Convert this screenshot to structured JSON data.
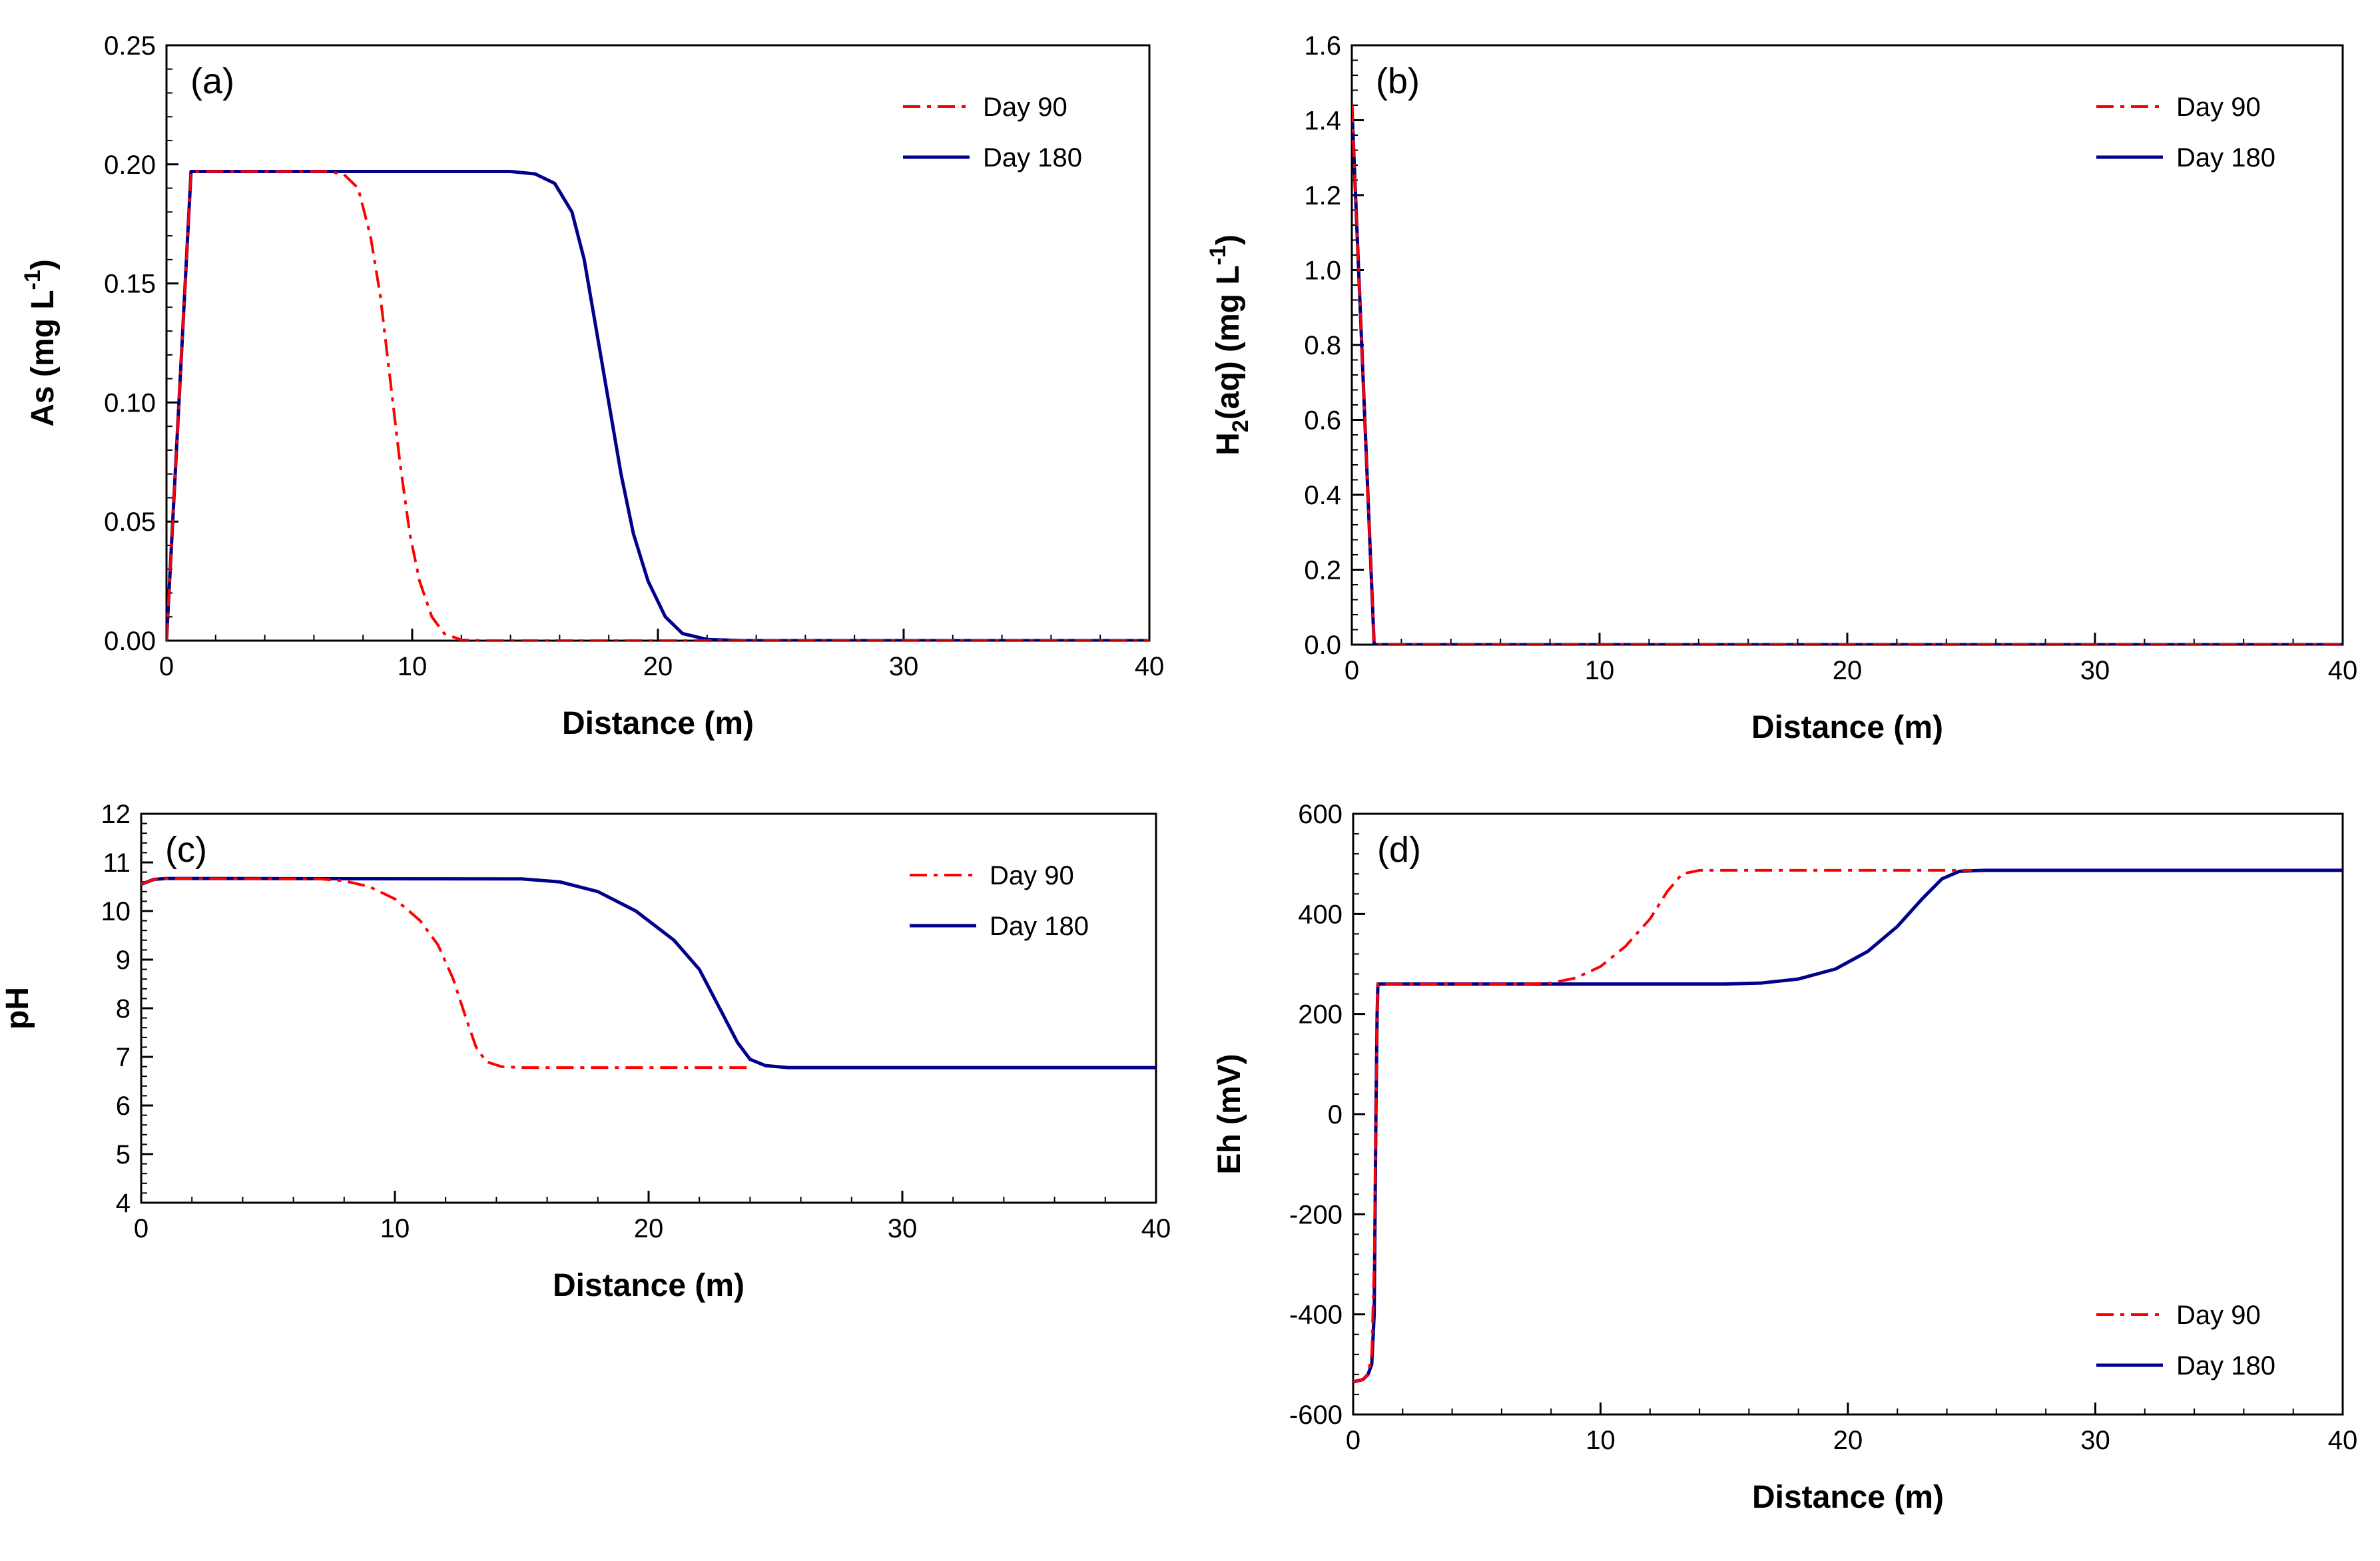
{
  "figure": {
    "xlabel": "Distance (m)"
  },
  "chart_data": [
    {
      "id": "a",
      "type": "line",
      "panel_label": "(a)",
      "xlabel": "Distance (m)",
      "ylabel": "As (mg L",
      "ylabel_sup": "-1",
      "ylabel_tail": ")",
      "xlim": [
        0,
        40
      ],
      "ylim": [
        0,
        0.25
      ],
      "xticks": [
        "0",
        "10",
        "20",
        "30",
        "40"
      ],
      "yticks": [
        "0.00",
        "0.05",
        "0.10",
        "0.15",
        "0.20",
        "0.25"
      ],
      "legend": {
        "position": "top-right"
      },
      "series": [
        {
          "name": "Day 90",
          "color": "#ff0000",
          "dash": "dashdot",
          "points": [
            [
              0,
              0
            ],
            [
              1,
              0.197
            ],
            [
              6.5,
              0.197
            ],
            [
              7.2,
              0.196
            ],
            [
              7.8,
              0.19
            ],
            [
              8.3,
              0.17
            ],
            [
              8.7,
              0.145
            ],
            [
              9.1,
              0.11
            ],
            [
              9.5,
              0.075
            ],
            [
              9.9,
              0.045
            ],
            [
              10.3,
              0.025
            ],
            [
              10.8,
              0.01
            ],
            [
              11.3,
              0.003
            ],
            [
              12,
              0.0003
            ],
            [
              13,
              0
            ],
            [
              40,
              0
            ]
          ]
        },
        {
          "name": "Day 180",
          "color": "#00008b",
          "dash": "solid",
          "points": [
            [
              0,
              0
            ],
            [
              1,
              0.197
            ],
            [
              14,
              0.197
            ],
            [
              15,
              0.196
            ],
            [
              15.8,
              0.192
            ],
            [
              16.5,
              0.18
            ],
            [
              17,
              0.16
            ],
            [
              17.5,
              0.13
            ],
            [
              18,
              0.1
            ],
            [
              18.5,
              0.07
            ],
            [
              19,
              0.045
            ],
            [
              19.6,
              0.025
            ],
            [
              20.3,
              0.01
            ],
            [
              21,
              0.003
            ],
            [
              22,
              0.0005
            ],
            [
              23.5,
              0
            ],
            [
              40,
              0
            ]
          ]
        }
      ]
    },
    {
      "id": "b",
      "type": "line",
      "panel_label": "(b)",
      "xlabel": "Distance (m)",
      "ylabel": "H",
      "ylabel_sub": "2",
      "ylabel_mid": "(aq) (mg L",
      "ylabel_sup": "-1",
      "ylabel_tail": ")",
      "xlim": [
        0,
        40
      ],
      "ylim": [
        0,
        1.6
      ],
      "xticks": [
        "0",
        "10",
        "20",
        "30",
        "40"
      ],
      "yticks": [
        "0.0",
        "0.2",
        "0.4",
        "0.6",
        "0.8",
        "1.0",
        "1.2",
        "1.4",
        "1.6"
      ],
      "legend": {
        "position": "top-right"
      },
      "series": [
        {
          "name": "Day 90",
          "color": "#ff0000",
          "dash": "dashdot",
          "points": [
            [
              0,
              1.44
            ],
            [
              0.9,
              0
            ],
            [
              40,
              0
            ]
          ]
        },
        {
          "name": "Day 180",
          "color": "#00008b",
          "dash": "solid",
          "points": [
            [
              0,
              1.44
            ],
            [
              0.9,
              0
            ],
            [
              40,
              0
            ]
          ]
        }
      ]
    },
    {
      "id": "c",
      "type": "line",
      "panel_label": "(c)",
      "xlabel": "Distance (m)",
      "ylabel": "pH",
      "xlim": [
        0,
        40
      ],
      "ylim": [
        4,
        12
      ],
      "xticks": [
        "0",
        "10",
        "20",
        "30",
        "40"
      ],
      "yticks": [
        "4",
        "5",
        "6",
        "7",
        "8",
        "9",
        "10",
        "11",
        "12"
      ],
      "legend": {
        "position": "top-right"
      },
      "series": [
        {
          "name": "Day 90",
          "color": "#ff0000",
          "dash": "dashdot",
          "points": [
            [
              0,
              10.55
            ],
            [
              0.5,
              10.65
            ],
            [
              1,
              10.67
            ],
            [
              7,
              10.66
            ],
            [
              8,
              10.62
            ],
            [
              9,
              10.5
            ],
            [
              10,
              10.25
            ],
            [
              11,
              9.8
            ],
            [
              11.7,
              9.3
            ],
            [
              12.3,
              8.6
            ],
            [
              12.8,
              7.8
            ],
            [
              13.2,
              7.2
            ],
            [
              13.6,
              6.9
            ],
            [
              14.2,
              6.8
            ],
            [
              15,
              6.78
            ],
            [
              24,
              6.78
            ]
          ]
        },
        {
          "name": "Day 180",
          "color": "#00008b",
          "dash": "solid",
          "points": [
            [
              0,
              10.55
            ],
            [
              0.5,
              10.65
            ],
            [
              1,
              10.67
            ],
            [
              15,
              10.66
            ],
            [
              16.5,
              10.6
            ],
            [
              18,
              10.4
            ],
            [
              19.5,
              10.0
            ],
            [
              21,
              9.4
            ],
            [
              22,
              8.8
            ],
            [
              22.8,
              8.0
            ],
            [
              23.5,
              7.3
            ],
            [
              24,
              6.95
            ],
            [
              24.6,
              6.82
            ],
            [
              25.5,
              6.78
            ],
            [
              40,
              6.78
            ]
          ]
        }
      ]
    },
    {
      "id": "d",
      "type": "line",
      "panel_label": "(d)",
      "xlabel": "Distance (m)",
      "ylabel": "Eh (mV)",
      "xlim": [
        0,
        40
      ],
      "ylim": [
        -600,
        600
      ],
      "xticks": [
        "0",
        "10",
        "20",
        "30",
        "40"
      ],
      "yticks": [
        "-600",
        "-400",
        "-200",
        "0",
        "200",
        "400",
        "600"
      ],
      "legend": {
        "position": "bottom-right"
      },
      "series": [
        {
          "name": "Day 90",
          "color": "#ff0000",
          "dash": "dashdot",
          "points": [
            [
              0,
              -535
            ],
            [
              0.4,
              -530
            ],
            [
              0.6,
              -520
            ],
            [
              0.75,
              -480
            ],
            [
              0.85,
              -300
            ],
            [
              0.92,
              0
            ],
            [
              0.97,
              200
            ],
            [
              1,
              260
            ],
            [
              7,
              260
            ],
            [
              8,
              262
            ],
            [
              9,
              272
            ],
            [
              10,
              295
            ],
            [
              11,
              335
            ],
            [
              12,
              390
            ],
            [
              12.7,
              445
            ],
            [
              13.3,
              480
            ],
            [
              14,
              487
            ],
            [
              25,
              487
            ]
          ]
        },
        {
          "name": "Day 180",
          "color": "#00008b",
          "dash": "solid",
          "points": [
            [
              0,
              -535
            ],
            [
              0.4,
              -530
            ],
            [
              0.6,
              -520
            ],
            [
              0.75,
              -500
            ],
            [
              0.85,
              -400
            ],
            [
              0.92,
              0
            ],
            [
              0.97,
              200
            ],
            [
              1,
              260
            ],
            [
              15,
              260
            ],
            [
              16.5,
              262
            ],
            [
              18,
              270
            ],
            [
              19.5,
              290
            ],
            [
              20.8,
              325
            ],
            [
              22,
              375
            ],
            [
              23,
              430
            ],
            [
              23.8,
              470
            ],
            [
              24.5,
              485
            ],
            [
              25.5,
              487
            ],
            [
              40,
              487
            ]
          ]
        }
      ]
    }
  ]
}
